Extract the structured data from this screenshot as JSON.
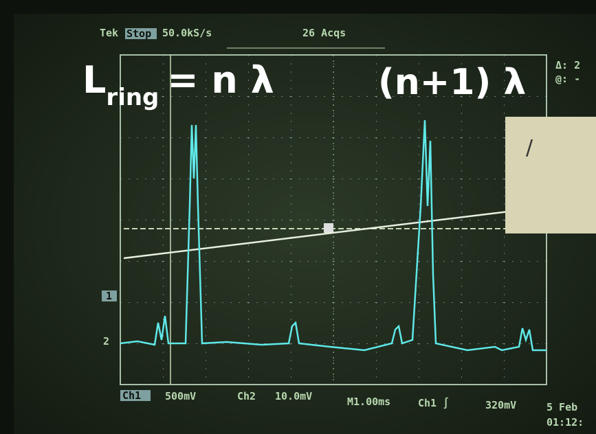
{
  "header": {
    "brand": "Tek",
    "mode": "Stop",
    "rate": "50.0kS/s",
    "acqs": "26 Acqs"
  },
  "annotations": {
    "left": {
      "main": "L",
      "subscript": "ring",
      "rest": "= n λ"
    },
    "right": "(n+1) λ"
  },
  "side": {
    "delta": "Δ: 2",
    "at": "@: -"
  },
  "markers": {
    "ch1": "1",
    "ch2": "2"
  },
  "footer": {
    "ch1_label": "Ch1",
    "ch1_scale": "500mV",
    "ch2_label": "Ch2",
    "ch2_scale": "10.0mV",
    "time": "M1.00ms",
    "trigger": "Ch1 ∫",
    "level": "320mV",
    "date": "5 Feb",
    "clock": "01:12:"
  },
  "paper": {
    "mark": "/"
  }
}
